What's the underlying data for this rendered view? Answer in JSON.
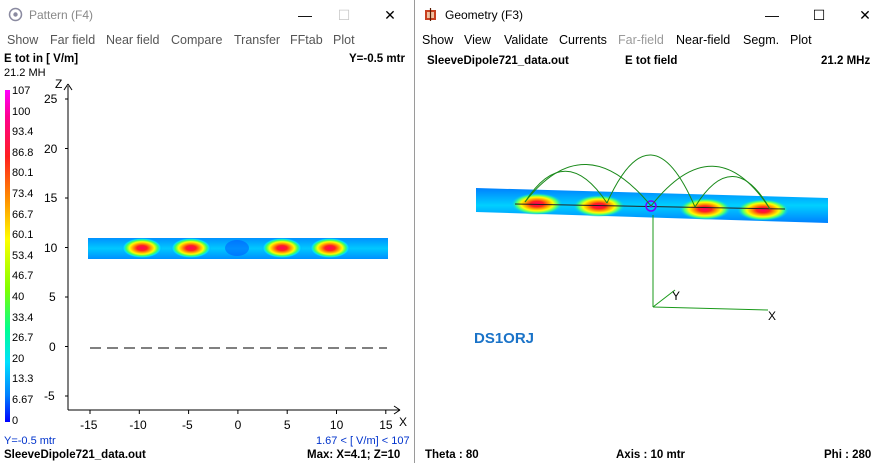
{
  "left": {
    "title": "Pattern   (F4)",
    "controls": {
      "minimize": "—",
      "maximize": "☐",
      "close": "✕"
    },
    "menu": [
      "Show",
      "Far field",
      "Near field",
      "Compare",
      "Transfer",
      "FFtab",
      "Plot"
    ],
    "heading": "E  tot in [ V/m]",
    "y_position": "Y=-0.5 mtr",
    "frequency": "21.2 MH",
    "scale": [
      "107",
      "100",
      "93.4",
      "86.8",
      "80.1",
      "73.4",
      "66.7",
      "60.1",
      "53.4",
      "46.7",
      "40",
      "33.4",
      "26.7",
      "20",
      "13.3",
      "6.67",
      "0"
    ],
    "z_axis_label": "Z",
    "x_axis_label": "X",
    "z_ticks": [
      "25",
      "20",
      "15",
      "10",
      "5",
      "0",
      "-5"
    ],
    "x_ticks": [
      "-15",
      "-10",
      "-5",
      "0",
      "5",
      "10",
      "15"
    ],
    "footer_y": "Y=-0.5 mtr",
    "footer_range": "1.67 < [ V/m] < 107",
    "footer_file": "SleeveDipole721_data.out",
    "footer_max": "Max: X=4.1; Z=10"
  },
  "right": {
    "title": "Geometry   (F3)",
    "controls": {
      "minimize": "—",
      "maximize": "☐",
      "close": "✕"
    },
    "menu": [
      {
        "label": "Show",
        "dim": false
      },
      {
        "label": "View",
        "dim": false
      },
      {
        "label": "Validate",
        "dim": false
      },
      {
        "label": "Currents",
        "dim": false
      },
      {
        "label": "Far-field",
        "dim": true
      },
      {
        "label": "Near-field",
        "dim": false
      },
      {
        "label": "Segm.",
        "dim": false
      },
      {
        "label": "Plot",
        "dim": false
      }
    ],
    "file": "SleeveDipole721_data.out",
    "field": "E  tot field",
    "frequency": "21.2 MHz",
    "callsign": "DS1ORJ",
    "axis_y": "Y",
    "axis_x": "X",
    "theta": "Theta : 80",
    "axis": "Axis : 10 mtr",
    "phi": "Phi : 280"
  },
  "colors": {
    "callsign": "#1a73c8",
    "footer_blue": "#0033cc",
    "current_curve": "#1a8a1a",
    "magenta": "#ff00ff"
  }
}
